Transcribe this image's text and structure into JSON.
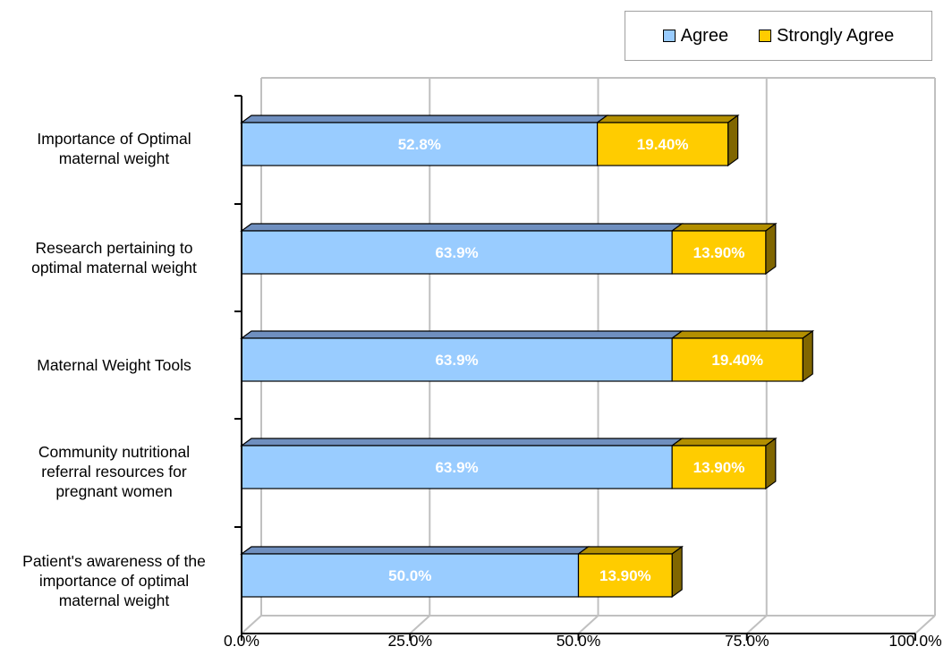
{
  "legend": {
    "agree_label": "Agree",
    "strongly_agree_label": "Strongly Agree"
  },
  "categories": [
    "Importance of Optimal maternal weight",
    "Research pertaining to optimal maternal weight",
    "Maternal Weight Tools",
    "Community nutritional referral resources for pregnant women",
    "Patient's awareness of the importance of optimal maternal weight"
  ],
  "category_lines": [
    [
      "Importance of Optimal",
      "maternal weight"
    ],
    [
      "Research pertaining to",
      "optimal maternal weight"
    ],
    [
      "Maternal Weight Tools"
    ],
    [
      "Community nutritional",
      "referral resources for",
      "pregnant women"
    ],
    [
      "Patient's awareness of the",
      "importance of optimal",
      "maternal weight"
    ]
  ],
  "x_ticks": [
    "0.0%",
    "25.0%",
    "50.0%",
    "75.0%",
    "100.0%"
  ],
  "colors": {
    "agree": "#99CCFF",
    "agree_top": "#6F8FBF",
    "strongly_agree": "#FFCC00",
    "strongly_agree_top": "#B38F00",
    "strongly_agree_side": "#806600",
    "grid": "#c0c0c0",
    "axis": "#000000"
  },
  "chart_data": {
    "type": "bar",
    "orientation": "horizontal",
    "stacked": true,
    "categories": [
      "Importance of Optimal maternal weight",
      "Research pertaining to optimal maternal weight",
      "Maternal Weight Tools",
      "Community nutritional referral resources for pregnant women",
      "Patient's awareness of the importance of optimal maternal weight"
    ],
    "series": [
      {
        "name": "Agree",
        "values": [
          52.8,
          63.9,
          63.9,
          63.9,
          50.0
        ],
        "labels": [
          "52.8%",
          "63.9%",
          "63.9%",
          "63.9%",
          "50.0%"
        ]
      },
      {
        "name": "Strongly Agree",
        "values": [
          19.4,
          13.9,
          19.4,
          13.9,
          13.9
        ],
        "labels": [
          "19.40%",
          "13.90%",
          "19.40%",
          "13.90%",
          "13.90%"
        ]
      }
    ],
    "xlim": [
      0,
      100
    ],
    "grid": true,
    "legend_position": "top-right"
  }
}
